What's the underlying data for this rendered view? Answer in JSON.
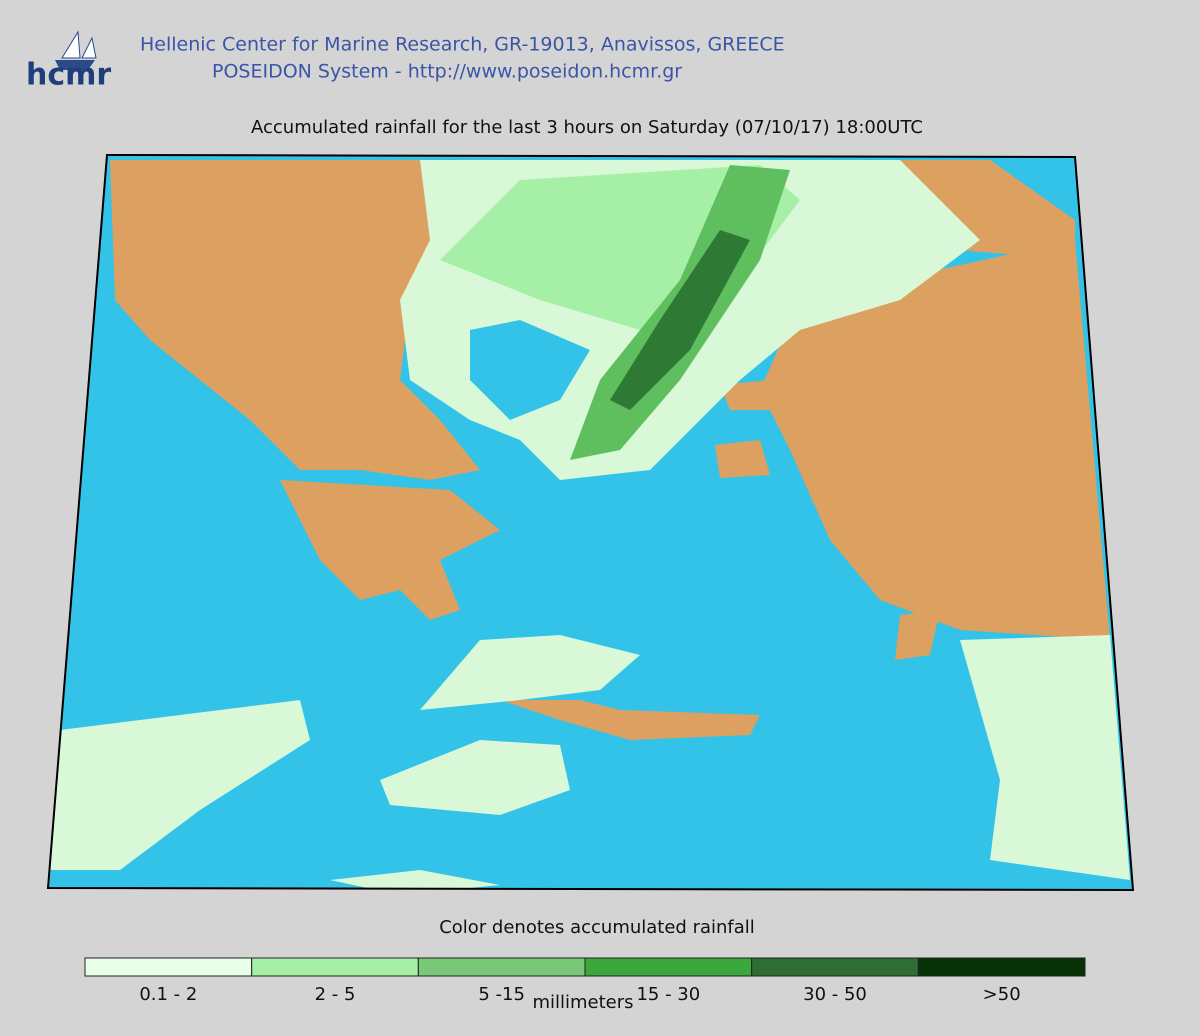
{
  "header": {
    "logo": "hcmr",
    "line1": "Hellenic Center for Marine Research, GR-19013, Anavissos, GREECE",
    "line2": "POSEIDON System - http://www.poseidon.hcmr.gr"
  },
  "title": "Accumulated rainfall for the last 3 hours on Saturday (07/10/17) 18:00UTC",
  "legend": {
    "title": "Color denotes accumulated rainfall",
    "items": [
      {
        "label": "0.1 - 2",
        "color": "#e8ffe8"
      },
      {
        "label": "2 - 5",
        "color": "#a6efa6"
      },
      {
        "label": "5 -15",
        "color": "#78c878"
      },
      {
        "label": "15 - 30",
        "color": "#3ca83c"
      },
      {
        "label": "30 - 50",
        "color": "#2e6e35"
      },
      {
        "label": ">50",
        "color": "#063306"
      }
    ],
    "unit": "millimeters"
  }
}
